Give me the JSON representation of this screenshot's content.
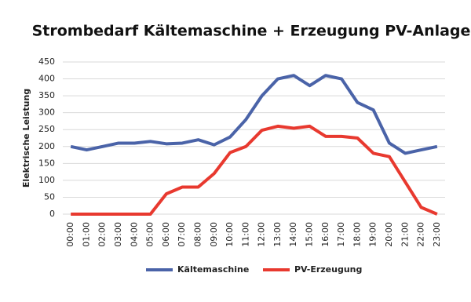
{
  "chart_data": {
    "type": "line",
    "title": "Strombedarf Kältemaschine + Erzeugung PV-Anlage",
    "y_label": "Elektrische Leistung",
    "categories": [
      "00:00",
      "01:00",
      "02:00",
      "03:00",
      "04:00",
      "05:00",
      "06:00",
      "07:00",
      "08:00",
      "09:00",
      "10:00",
      "11:00",
      "12:00",
      "13:00",
      "14:00",
      "15:00",
      "16:00",
      "17:00",
      "18:00",
      "19:00",
      "20:00",
      "21:00",
      "22:00",
      "23:00"
    ],
    "series": [
      {
        "name": "Kältemaschine",
        "color": "#4a63a8",
        "values": [
          200,
          190,
          200,
          210,
          210,
          215,
          208,
          210,
          220,
          205,
          228,
          280,
          350,
          400,
          410,
          380,
          410,
          400,
          330,
          308,
          210,
          180,
          190,
          200
        ]
      },
      {
        "name": "PV-Erzeugung",
        "color": "#e8392f",
        "values": [
          0,
          0,
          0,
          0,
          0,
          0,
          60,
          80,
          80,
          120,
          182,
          200,
          248,
          260,
          254,
          260,
          230,
          230,
          225,
          180,
          170,
          95,
          20,
          0
        ]
      }
    ],
    "ylim": [
      0,
      450
    ],
    "yticks": [
      0,
      50,
      100,
      150,
      200,
      250,
      300,
      350,
      400,
      450
    ],
    "grid": true,
    "legend": "bottom"
  }
}
